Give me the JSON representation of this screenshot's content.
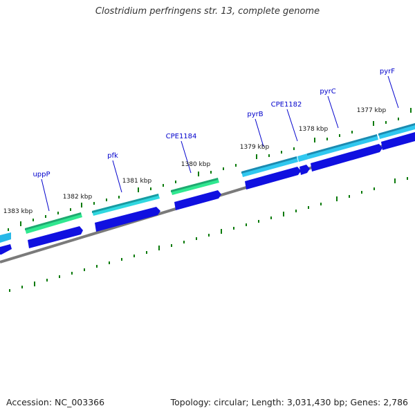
{
  "title": "Clostridium perfringens str. 13, complete genome",
  "footer": {
    "accession": "Accession: NC_003366",
    "summary": "Topology: circular; Length: 3,031,430 bp; Genes: 2,786"
  },
  "colors": {
    "backbone": "#808080",
    "tick": "#0a7a0a",
    "cds_strand": "#1010e0",
    "gene_cyan": "#30c8f0",
    "gene_green": "#30e890",
    "gene_teal": "#20b8c8",
    "label": "#0000cc"
  },
  "kbp_labels": [
    "1377 kbp",
    "1378 kbp",
    "1379 kbp",
    "1380 kbp",
    "1381 kbp",
    "1382 kbp",
    "1383 kbp"
  ],
  "gene_labels": [
    "pyrF",
    "pyrC",
    "CPE1182",
    "pyrB",
    "CPE1184",
    "pfk",
    "uppP"
  ]
}
